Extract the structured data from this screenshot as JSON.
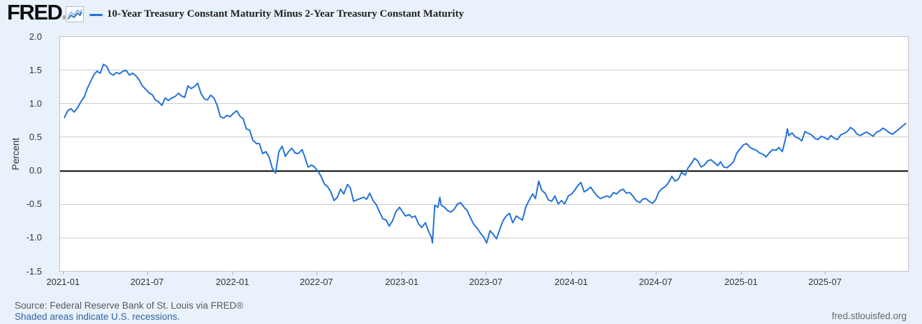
{
  "header": {
    "logo_text": "FRED",
    "logo_registered": "®"
  },
  "footer": {
    "source_text": "Source: Federal Reserve Bank of St. Louis via FRED®",
    "recession_note": "Shaded areas indicate U.S. recessions.",
    "site_link": "fred.stlouisfed.org"
  },
  "colors": {
    "line": "#2272d7",
    "page_background": "#e9f1fb",
    "plot_background": "#ffffff",
    "gridline": "#cccccc",
    "zero_line": "#000000",
    "plot_border": "#c2c2c2"
  },
  "chart_data": {
    "type": "line",
    "title": "10-Year Treasury Constant Maturity Minus 2-Year Treasury Constant Maturity",
    "ylabel": "Percent",
    "ylim": [
      -1.5,
      2.0
    ],
    "y_ticks": [
      2.0,
      1.5,
      1.0,
      0.5,
      0.0,
      -0.5,
      -1.0,
      -1.5
    ],
    "x_range": [
      "2020-12-24",
      "2025-12-27"
    ],
    "x_ticks": [
      {
        "label": "2021-01",
        "date": "2021-01-01"
      },
      {
        "label": "2021-07",
        "date": "2021-07-01"
      },
      {
        "label": "2022-01",
        "date": "2022-01-01"
      },
      {
        "label": "2022-07",
        "date": "2022-07-01"
      },
      {
        "label": "2023-01",
        "date": "2023-01-01"
      },
      {
        "label": "2023-07",
        "date": "2023-07-01"
      },
      {
        "label": "2024-01",
        "date": "2024-01-01"
      },
      {
        "label": "2024-07",
        "date": "2024-07-01"
      },
      {
        "label": "2025-01",
        "date": "2025-01-01"
      },
      {
        "label": "2025-07",
        "date": "2025-07-01"
      }
    ],
    "grid": true,
    "zero_line": true,
    "legend_position": "top-left",
    "series": [
      {
        "name": "10-Year Treasury Constant Maturity Minus 2-Year Treasury Constant Maturity",
        "color": "#2272d7",
        "unit": "percent",
        "frequency": "weekly",
        "points": [
          [
            "2021-01-04",
            0.79
          ],
          [
            "2021-01-11",
            0.89
          ],
          [
            "2021-01-18",
            0.92
          ],
          [
            "2021-01-25",
            0.87
          ],
          [
            "2021-02-01",
            0.93
          ],
          [
            "2021-02-08",
            1.02
          ],
          [
            "2021-02-16",
            1.1
          ],
          [
            "2021-02-22",
            1.22
          ],
          [
            "2021-03-01",
            1.32
          ],
          [
            "2021-03-08",
            1.42
          ],
          [
            "2021-03-15",
            1.48
          ],
          [
            "2021-03-22",
            1.45
          ],
          [
            "2021-03-29",
            1.58
          ],
          [
            "2021-04-05",
            1.55
          ],
          [
            "2021-04-12",
            1.45
          ],
          [
            "2021-04-19",
            1.42
          ],
          [
            "2021-04-26",
            1.46
          ],
          [
            "2021-05-03",
            1.44
          ],
          [
            "2021-05-10",
            1.48
          ],
          [
            "2021-05-17",
            1.49
          ],
          [
            "2021-05-24",
            1.42
          ],
          [
            "2021-05-31",
            1.45
          ],
          [
            "2021-06-07",
            1.41
          ],
          [
            "2021-06-14",
            1.35
          ],
          [
            "2021-06-21",
            1.26
          ],
          [
            "2021-06-28",
            1.21
          ],
          [
            "2021-07-06",
            1.15
          ],
          [
            "2021-07-12",
            1.13
          ],
          [
            "2021-07-19",
            1.05
          ],
          [
            "2021-07-26",
            1.02
          ],
          [
            "2021-08-02",
            0.97
          ],
          [
            "2021-08-09",
            1.08
          ],
          [
            "2021-08-16",
            1.04
          ],
          [
            "2021-08-23",
            1.08
          ],
          [
            "2021-08-30",
            1.1
          ],
          [
            "2021-09-07",
            1.15
          ],
          [
            "2021-09-13",
            1.11
          ],
          [
            "2021-09-20",
            1.09
          ],
          [
            "2021-09-27",
            1.26
          ],
          [
            "2021-10-04",
            1.22
          ],
          [
            "2021-10-11",
            1.25
          ],
          [
            "2021-10-18",
            1.3
          ],
          [
            "2021-10-25",
            1.15
          ],
          [
            "2021-11-01",
            1.07
          ],
          [
            "2021-11-08",
            1.05
          ],
          [
            "2021-11-15",
            1.12
          ],
          [
            "2021-11-22",
            1.08
          ],
          [
            "2021-11-29",
            0.97
          ],
          [
            "2021-12-06",
            0.8
          ],
          [
            "2021-12-13",
            0.78
          ],
          [
            "2021-12-20",
            0.82
          ],
          [
            "2021-12-27",
            0.8
          ],
          [
            "2022-01-03",
            0.85
          ],
          [
            "2022-01-10",
            0.89
          ],
          [
            "2022-01-18",
            0.8
          ],
          [
            "2022-01-24",
            0.77
          ],
          [
            "2022-01-31",
            0.62
          ],
          [
            "2022-02-07",
            0.6
          ],
          [
            "2022-02-14",
            0.45
          ],
          [
            "2022-02-22",
            0.4
          ],
          [
            "2022-02-28",
            0.4
          ],
          [
            "2022-03-07",
            0.25
          ],
          [
            "2022-03-14",
            0.28
          ],
          [
            "2022-03-21",
            0.2
          ],
          [
            "2022-03-28",
            0.03
          ],
          [
            "2022-04-04",
            -0.04
          ],
          [
            "2022-04-11",
            0.28
          ],
          [
            "2022-04-18",
            0.36
          ],
          [
            "2022-04-25",
            0.21
          ],
          [
            "2022-05-02",
            0.28
          ],
          [
            "2022-05-09",
            0.33
          ],
          [
            "2022-05-16",
            0.26
          ],
          [
            "2022-05-23",
            0.25
          ],
          [
            "2022-05-31",
            0.31
          ],
          [
            "2022-06-06",
            0.2
          ],
          [
            "2022-06-13",
            0.05
          ],
          [
            "2022-06-21",
            0.08
          ],
          [
            "2022-06-27",
            0.05
          ],
          [
            "2022-07-05",
            -0.02
          ],
          [
            "2022-07-11",
            -0.09
          ],
          [
            "2022-07-18",
            -0.2
          ],
          [
            "2022-07-25",
            -0.24
          ],
          [
            "2022-08-01",
            -0.32
          ],
          [
            "2022-08-08",
            -0.45
          ],
          [
            "2022-08-15",
            -0.4
          ],
          [
            "2022-08-22",
            -0.28
          ],
          [
            "2022-08-29",
            -0.35
          ],
          [
            "2022-09-06",
            -0.21
          ],
          [
            "2022-09-12",
            -0.26
          ],
          [
            "2022-09-19",
            -0.46
          ],
          [
            "2022-09-26",
            -0.44
          ],
          [
            "2022-10-03",
            -0.42
          ],
          [
            "2022-10-11",
            -0.4
          ],
          [
            "2022-10-17",
            -0.43
          ],
          [
            "2022-10-24",
            -0.34
          ],
          [
            "2022-10-31",
            -0.45
          ],
          [
            "2022-11-07",
            -0.51
          ],
          [
            "2022-11-14",
            -0.62
          ],
          [
            "2022-11-21",
            -0.72
          ],
          [
            "2022-11-28",
            -0.74
          ],
          [
            "2022-12-05",
            -0.83
          ],
          [
            "2022-12-12",
            -0.75
          ],
          [
            "2022-12-19",
            -0.62
          ],
          [
            "2022-12-27",
            -0.55
          ],
          [
            "2023-01-03",
            -0.62
          ],
          [
            "2023-01-09",
            -0.68
          ],
          [
            "2023-01-17",
            -0.66
          ],
          [
            "2023-01-23",
            -0.7
          ],
          [
            "2023-01-30",
            -0.68
          ],
          [
            "2023-02-06",
            -0.8
          ],
          [
            "2023-02-13",
            -0.85
          ],
          [
            "2023-02-21",
            -0.78
          ],
          [
            "2023-02-27",
            -0.9
          ],
          [
            "2023-03-06",
            -1.0
          ],
          [
            "2023-03-08",
            -1.08
          ],
          [
            "2023-03-13",
            -0.52
          ],
          [
            "2023-03-20",
            -0.55
          ],
          [
            "2023-03-24",
            -0.4
          ],
          [
            "2023-03-27",
            -0.52
          ],
          [
            "2023-04-03",
            -0.55
          ],
          [
            "2023-04-10",
            -0.6
          ],
          [
            "2023-04-17",
            -0.62
          ],
          [
            "2023-04-24",
            -0.58
          ],
          [
            "2023-05-01",
            -0.5
          ],
          [
            "2023-05-08",
            -0.48
          ],
          [
            "2023-05-15",
            -0.55
          ],
          [
            "2023-05-22",
            -0.6
          ],
          [
            "2023-05-30",
            -0.72
          ],
          [
            "2023-06-05",
            -0.8
          ],
          [
            "2023-06-12",
            -0.86
          ],
          [
            "2023-06-20",
            -0.94
          ],
          [
            "2023-06-26",
            -0.99
          ],
          [
            "2023-07-03",
            -1.08
          ],
          [
            "2023-07-10",
            -0.9
          ],
          [
            "2023-07-17",
            -0.95
          ],
          [
            "2023-07-24",
            -1.02
          ],
          [
            "2023-07-31",
            -0.88
          ],
          [
            "2023-08-07",
            -0.75
          ],
          [
            "2023-08-14",
            -0.68
          ],
          [
            "2023-08-21",
            -0.64
          ],
          [
            "2023-08-28",
            -0.78
          ],
          [
            "2023-09-05",
            -0.68
          ],
          [
            "2023-09-11",
            -0.71
          ],
          [
            "2023-09-18",
            -0.74
          ],
          [
            "2023-09-25",
            -0.55
          ],
          [
            "2023-10-02",
            -0.45
          ],
          [
            "2023-10-10",
            -0.35
          ],
          [
            "2023-10-16",
            -0.42
          ],
          [
            "2023-10-23",
            -0.16
          ],
          [
            "2023-10-30",
            -0.3
          ],
          [
            "2023-11-06",
            -0.34
          ],
          [
            "2023-11-13",
            -0.44
          ],
          [
            "2023-11-20",
            -0.46
          ],
          [
            "2023-11-27",
            -0.38
          ],
          [
            "2023-12-04",
            -0.5
          ],
          [
            "2023-12-11",
            -0.45
          ],
          [
            "2023-12-18",
            -0.5
          ],
          [
            "2023-12-26",
            -0.38
          ],
          [
            "2024-01-02",
            -0.35
          ],
          [
            "2024-01-08",
            -0.3
          ],
          [
            "2024-01-16",
            -0.22
          ],
          [
            "2024-01-22",
            -0.18
          ],
          [
            "2024-01-29",
            -0.32
          ],
          [
            "2024-02-05",
            -0.29
          ],
          [
            "2024-02-12",
            -0.25
          ],
          [
            "2024-02-20",
            -0.33
          ],
          [
            "2024-02-26",
            -0.38
          ],
          [
            "2024-03-04",
            -0.42
          ],
          [
            "2024-03-11",
            -0.4
          ],
          [
            "2024-03-18",
            -0.38
          ],
          [
            "2024-03-25",
            -0.4
          ],
          [
            "2024-04-01",
            -0.33
          ],
          [
            "2024-04-08",
            -0.35
          ],
          [
            "2024-04-15",
            -0.3
          ],
          [
            "2024-04-22",
            -0.28
          ],
          [
            "2024-04-29",
            -0.34
          ],
          [
            "2024-05-06",
            -0.33
          ],
          [
            "2024-05-13",
            -0.38
          ],
          [
            "2024-05-20",
            -0.45
          ],
          [
            "2024-05-28",
            -0.48
          ],
          [
            "2024-06-03",
            -0.43
          ],
          [
            "2024-06-10",
            -0.42
          ],
          [
            "2024-06-17",
            -0.46
          ],
          [
            "2024-06-24",
            -0.49
          ],
          [
            "2024-07-01",
            -0.44
          ],
          [
            "2024-07-08",
            -0.32
          ],
          [
            "2024-07-15",
            -0.27
          ],
          [
            "2024-07-22",
            -0.24
          ],
          [
            "2024-07-29",
            -0.18
          ],
          [
            "2024-08-05",
            -0.09
          ],
          [
            "2024-08-12",
            -0.16
          ],
          [
            "2024-08-19",
            -0.13
          ],
          [
            "2024-08-26",
            -0.03
          ],
          [
            "2024-09-03",
            -0.07
          ],
          [
            "2024-09-09",
            0.04
          ],
          [
            "2024-09-16",
            0.1
          ],
          [
            "2024-09-23",
            0.18
          ],
          [
            "2024-09-30",
            0.14
          ],
          [
            "2024-10-07",
            0.05
          ],
          [
            "2024-10-14",
            0.08
          ],
          [
            "2024-10-21",
            0.14
          ],
          [
            "2024-10-28",
            0.16
          ],
          [
            "2024-11-04",
            0.12
          ],
          [
            "2024-11-12",
            0.07
          ],
          [
            "2024-11-18",
            0.13
          ],
          [
            "2024-11-25",
            0.05
          ],
          [
            "2024-12-02",
            0.04
          ],
          [
            "2024-12-09",
            0.08
          ],
          [
            "2024-12-16",
            0.13
          ],
          [
            "2024-12-23",
            0.26
          ],
          [
            "2024-12-30",
            0.32
          ],
          [
            "2025-01-06",
            0.38
          ],
          [
            "2025-01-13",
            0.4
          ],
          [
            "2025-01-21",
            0.34
          ],
          [
            "2025-01-27",
            0.32
          ],
          [
            "2025-02-03",
            0.3
          ],
          [
            "2025-02-10",
            0.26
          ],
          [
            "2025-02-18",
            0.24
          ],
          [
            "2025-02-24",
            0.2
          ],
          [
            "2025-03-03",
            0.26
          ],
          [
            "2025-03-10",
            0.31
          ],
          [
            "2025-03-17",
            0.3
          ],
          [
            "2025-03-24",
            0.34
          ],
          [
            "2025-03-31",
            0.28
          ],
          [
            "2025-04-07",
            0.47
          ],
          [
            "2025-04-11",
            0.62
          ],
          [
            "2025-04-14",
            0.52
          ],
          [
            "2025-04-21",
            0.56
          ],
          [
            "2025-04-28",
            0.5
          ],
          [
            "2025-05-05",
            0.48
          ],
          [
            "2025-05-12",
            0.44
          ],
          [
            "2025-05-19",
            0.58
          ],
          [
            "2025-05-27",
            0.55
          ],
          [
            "2025-06-02",
            0.53
          ],
          [
            "2025-06-09",
            0.48
          ],
          [
            "2025-06-16",
            0.46
          ],
          [
            "2025-06-23",
            0.51
          ],
          [
            "2025-06-30",
            0.49
          ],
          [
            "2025-07-07",
            0.46
          ],
          [
            "2025-07-14",
            0.52
          ],
          [
            "2025-07-21",
            0.48
          ],
          [
            "2025-07-28",
            0.46
          ],
          [
            "2025-08-04",
            0.53
          ],
          [
            "2025-08-11",
            0.55
          ],
          [
            "2025-08-18",
            0.58
          ],
          [
            "2025-08-25",
            0.64
          ],
          [
            "2025-09-02",
            0.6
          ],
          [
            "2025-09-08",
            0.54
          ],
          [
            "2025-09-15",
            0.52
          ],
          [
            "2025-09-22",
            0.55
          ],
          [
            "2025-09-29",
            0.57
          ],
          [
            "2025-10-06",
            0.54
          ],
          [
            "2025-10-13",
            0.51
          ],
          [
            "2025-10-20",
            0.57
          ],
          [
            "2025-10-27",
            0.59
          ],
          [
            "2025-11-03",
            0.63
          ],
          [
            "2025-11-10",
            0.6
          ],
          [
            "2025-11-17",
            0.56
          ],
          [
            "2025-11-24",
            0.54
          ],
          [
            "2025-12-01",
            0.58
          ],
          [
            "2025-12-08",
            0.62
          ],
          [
            "2025-12-15",
            0.66
          ],
          [
            "2025-12-22",
            0.7
          ]
        ]
      }
    ]
  }
}
